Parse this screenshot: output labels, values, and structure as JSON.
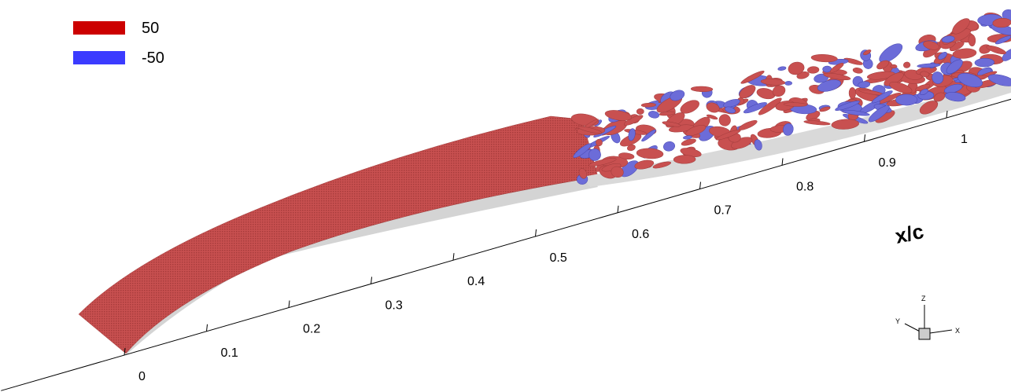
{
  "chart_data": {
    "type": "isosurface",
    "xlabel": "x/c",
    "xlim": [
      -0.15,
      1.08
    ],
    "xticks": [
      0,
      0.1,
      0.2,
      0.3,
      0.4,
      0.5,
      0.6,
      0.7,
      0.8,
      0.9,
      1
    ],
    "series": [
      {
        "name": "50",
        "color": "#cc0000"
      },
      {
        "name": "-50",
        "color": "#3b3bff"
      }
    ],
    "triad": {
      "z": "Z",
      "y": "Y",
      "x": "X"
    }
  }
}
